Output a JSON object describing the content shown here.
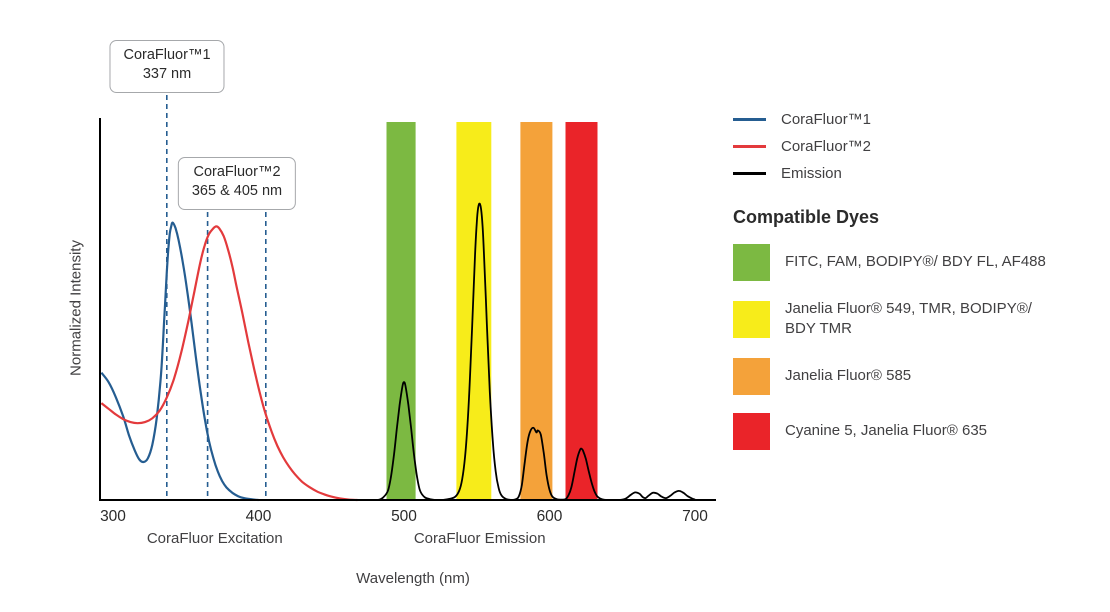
{
  "chart_data": {
    "type": "line",
    "title": "",
    "xlabel": "Wavelength (nm)",
    "ylabel": "Normalized Intensity",
    "x_axis": {
      "min": 300,
      "max": 700,
      "ticks": [
        300,
        400,
        500,
        600,
        700
      ]
    },
    "y_axis": {
      "min": 0,
      "max": 1,
      "ticks": []
    },
    "grid": false,
    "axis_section_labels": [
      {
        "label": "CoraFluor Excitation",
        "center_nm": 370
      },
      {
        "label": "CoraFluor Emission",
        "center_nm": 552
      }
    ],
    "callouts": [
      {
        "line1": "CoraFluor™1",
        "line2": "337 nm"
      },
      {
        "line1": "CoraFluor™2",
        "line2": "365 & 405 nm"
      }
    ],
    "excitation_markers": [
      {
        "wavelength": 337
      },
      {
        "wavelength": 365
      },
      {
        "wavelength": 405
      }
    ],
    "marker_color": "#255d91",
    "filter_bands": [
      {
        "name": "green",
        "from_nm": 488,
        "to_nm": 508,
        "color": "#7cb942"
      },
      {
        "name": "yellow",
        "from_nm": 536,
        "to_nm": 560,
        "color": "#f7ec1a"
      },
      {
        "name": "orange",
        "from_nm": 580,
        "to_nm": 602,
        "color": "#f4a23a"
      },
      {
        "name": "red",
        "from_nm": 611,
        "to_nm": 633,
        "color": "#ea2429"
      }
    ],
    "series": [
      {
        "name": "CoraFluor™1",
        "color": "#255d91",
        "points": [
          [
            292,
            0.335
          ],
          [
            297,
            0.31
          ],
          [
            302,
            0.27
          ],
          [
            307,
            0.22
          ],
          [
            311,
            0.17
          ],
          [
            315,
            0.13
          ],
          [
            318,
            0.107
          ],
          [
            321,
            0.1
          ],
          [
            324,
            0.11
          ],
          [
            327,
            0.145
          ],
          [
            330,
            0.215
          ],
          [
            333,
            0.33
          ],
          [
            335,
            0.46
          ],
          [
            337,
            0.6
          ],
          [
            338,
            0.66
          ],
          [
            339,
            0.7
          ],
          [
            340,
            0.72
          ],
          [
            341,
            0.73
          ],
          [
            343,
            0.715
          ],
          [
            345,
            0.685
          ],
          [
            348,
            0.625
          ],
          [
            351,
            0.55
          ],
          [
            354,
            0.465
          ],
          [
            357,
            0.375
          ],
          [
            360,
            0.29
          ],
          [
            363,
            0.215
          ],
          [
            366,
            0.155
          ],
          [
            369,
            0.11
          ],
          [
            372,
            0.075
          ],
          [
            375,
            0.05
          ],
          [
            378,
            0.033
          ],
          [
            382,
            0.019
          ],
          [
            386,
            0.01
          ],
          [
            390,
            0.005
          ],
          [
            395,
            0.002
          ],
          [
            400,
            0
          ]
        ]
      },
      {
        "name": "CoraFluor™2",
        "color": "#e33a3c",
        "points": [
          [
            292,
            0.255
          ],
          [
            297,
            0.24
          ],
          [
            302,
            0.225
          ],
          [
            307,
            0.213
          ],
          [
            312,
            0.205
          ],
          [
            317,
            0.202
          ],
          [
            322,
            0.205
          ],
          [
            327,
            0.215
          ],
          [
            332,
            0.235
          ],
          [
            337,
            0.27
          ],
          [
            342,
            0.32
          ],
          [
            347,
            0.39
          ],
          [
            352,
            0.475
          ],
          [
            356,
            0.55
          ],
          [
            360,
            0.625
          ],
          [
            363,
            0.67
          ],
          [
            366,
            0.7
          ],
          [
            369,
            0.715
          ],
          [
            371,
            0.72
          ],
          [
            373,
            0.715
          ],
          [
            376,
            0.695
          ],
          [
            379,
            0.66
          ],
          [
            382,
            0.615
          ],
          [
            385,
            0.56
          ],
          [
            389,
            0.49
          ],
          [
            393,
            0.415
          ],
          [
            397,
            0.345
          ],
          [
            401,
            0.28
          ],
          [
            405,
            0.225
          ],
          [
            409,
            0.18
          ],
          [
            413,
            0.142
          ],
          [
            417,
            0.112
          ],
          [
            421,
            0.088
          ],
          [
            425,
            0.068
          ],
          [
            430,
            0.048
          ],
          [
            435,
            0.034
          ],
          [
            440,
            0.023
          ],
          [
            445,
            0.015
          ],
          [
            450,
            0.009
          ],
          [
            456,
            0.004
          ],
          [
            462,
            0.001
          ],
          [
            468,
            0
          ]
        ]
      },
      {
        "name": "Emission",
        "color": "#000000",
        "points": [
          [
            440,
            0
          ],
          [
            470,
            0
          ],
          [
            482,
            0
          ],
          [
            486,
            0.008
          ],
          [
            489,
            0.025
          ],
          [
            491,
            0.06
          ],
          [
            493,
            0.115
          ],
          [
            495,
            0.185
          ],
          [
            497,
            0.25
          ],
          [
            499,
            0.3
          ],
          [
            500,
            0.31
          ],
          [
            501,
            0.3
          ],
          [
            503,
            0.25
          ],
          [
            505,
            0.185
          ],
          [
            507,
            0.115
          ],
          [
            509,
            0.06
          ],
          [
            511,
            0.025
          ],
          [
            514,
            0.008
          ],
          [
            518,
            0.002
          ],
          [
            524,
            0
          ],
          [
            530,
            0.002
          ],
          [
            535,
            0.008
          ],
          [
            538,
            0.025
          ],
          [
            540,
            0.055
          ],
          [
            542,
            0.115
          ],
          [
            544,
            0.22
          ],
          [
            546,
            0.38
          ],
          [
            548,
            0.565
          ],
          [
            549,
            0.66
          ],
          [
            550,
            0.73
          ],
          [
            551,
            0.77
          ],
          [
            552,
            0.78
          ],
          [
            553,
            0.765
          ],
          [
            554,
            0.72
          ],
          [
            555,
            0.645
          ],
          [
            557,
            0.46
          ],
          [
            559,
            0.285
          ],
          [
            561,
            0.155
          ],
          [
            563,
            0.075
          ],
          [
            565,
            0.032
          ],
          [
            567,
            0.012
          ],
          [
            570,
            0.003
          ],
          [
            574,
            0
          ],
          [
            577,
            0.002
          ],
          [
            579,
            0.01
          ],
          [
            581,
            0.04
          ],
          [
            583,
            0.1
          ],
          [
            585,
            0.155
          ],
          [
            587,
            0.183
          ],
          [
            589,
            0.19
          ],
          [
            591,
            0.178
          ],
          [
            592,
            0.183
          ],
          [
            594,
            0.172
          ],
          [
            596,
            0.125
          ],
          [
            598,
            0.065
          ],
          [
            600,
            0.027
          ],
          [
            602,
            0.009
          ],
          [
            605,
            0.002
          ],
          [
            608,
            0.001
          ],
          [
            611,
            0.002
          ],
          [
            613,
            0.012
          ],
          [
            615,
            0.033
          ],
          [
            617,
            0.07
          ],
          [
            619,
            0.108
          ],
          [
            621,
            0.132
          ],
          [
            622,
            0.135
          ],
          [
            623,
            0.13
          ],
          [
            625,
            0.108
          ],
          [
            627,
            0.075
          ],
          [
            629,
            0.045
          ],
          [
            631,
            0.022
          ],
          [
            633,
            0.009
          ],
          [
            636,
            0.002
          ],
          [
            640,
            0
          ],
          [
            646,
            0
          ],
          [
            650,
            0.001
          ],
          [
            653,
            0.005
          ],
          [
            656,
            0.014
          ],
          [
            659,
            0.02
          ],
          [
            662,
            0.016
          ],
          [
            664,
            0.008
          ],
          [
            666,
            0.005
          ],
          [
            668,
            0.011
          ],
          [
            671,
            0.019
          ],
          [
            674,
            0.017
          ],
          [
            677,
            0.009
          ],
          [
            680,
            0.005
          ],
          [
            683,
            0.011
          ],
          [
            686,
            0.02
          ],
          [
            689,
            0.024
          ],
          [
            692,
            0.019
          ],
          [
            695,
            0.01
          ],
          [
            698,
            0.004
          ],
          [
            700,
            0.001
          ]
        ]
      }
    ]
  },
  "legend": {
    "series": [
      {
        "label": "CoraFluor™1",
        "color": "#255d91"
      },
      {
        "label": "CoraFluor™2",
        "color": "#e33a3c"
      },
      {
        "label": "Emission",
        "color": "#000000"
      }
    ],
    "dyes_heading": "Compatible Dyes",
    "dyes": [
      {
        "label": "FITC, FAM, BODIPY®/ BDY FL, AF488",
        "color": "#7cb942"
      },
      {
        "label": "Janelia Fluor® 549, TMR, BODIPY®/ BDY TMR",
        "color": "#f7ec1a"
      },
      {
        "label": "Janelia Fluor® 585",
        "color": "#f4a23a"
      },
      {
        "label": "Cyanine 5, Janelia Fluor® 635",
        "color": "#ea2429"
      }
    ]
  }
}
